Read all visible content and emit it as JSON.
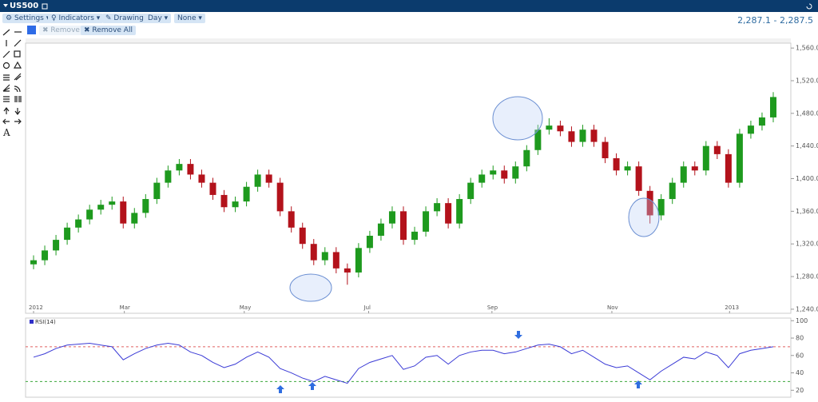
{
  "header": {
    "title": "US500",
    "quote": "2,287.1 - 2,287.5"
  },
  "toolbar": {
    "buttons": [
      "Settings",
      "Indicators",
      "Drawing",
      "Day",
      "None"
    ],
    "remove": "Remove",
    "remove_all": "Remove All"
  },
  "drawing_tools": {
    "text_tool": "A"
  },
  "chart_data": [
    {
      "type": "candlestick",
      "xlim": [
        -0.5,
        66.5
      ],
      "xticks": [
        {
          "value": 0,
          "label": "2012"
        },
        {
          "value": 8.1,
          "label": "Mar"
        },
        {
          "value": 18.8,
          "label": "May"
        },
        {
          "value": 29.9,
          "label": "Jul"
        },
        {
          "value": 40.9,
          "label": "Sep"
        },
        {
          "value": 51.6,
          "label": "Nov"
        },
        {
          "value": 62.1,
          "label": "2013"
        }
      ],
      "ylim": [
        1235,
        1566
      ],
      "yticks": [
        {
          "value": 1240,
          "label": "1,240.0"
        },
        {
          "value": 1280,
          "label": "1,280.0"
        },
        {
          "value": 1320,
          "label": "1,320.0"
        },
        {
          "value": 1360,
          "label": "1,360.0"
        },
        {
          "value": 1400,
          "label": "1,400.0"
        },
        {
          "value": 1440,
          "label": "1,440.0"
        },
        {
          "value": 1480,
          "label": "1,480.0"
        },
        {
          "value": 1520,
          "label": "1,520.0"
        },
        {
          "value": 1560,
          "label": "1,560.0"
        }
      ],
      "grid": false,
      "up_color": "#1e9a1e",
      "down_color": "#b3121b",
      "open": [
        1295,
        1300,
        1312,
        1325,
        1340,
        1350,
        1362,
        1368,
        1372,
        1345,
        1358,
        1375,
        1395,
        1410,
        1418,
        1405,
        1395,
        1380,
        1365,
        1372,
        1390,
        1405,
        1395,
        1360,
        1340,
        1320,
        1300,
        1310,
        1290,
        1285,
        1315,
        1330,
        1345,
        1360,
        1325,
        1335,
        1360,
        1370,
        1345,
        1375,
        1395,
        1405,
        1410,
        1400,
        1415,
        1435,
        1460,
        1465,
        1458,
        1445,
        1460,
        1445,
        1425,
        1410,
        1415,
        1385,
        1355,
        1375,
        1395,
        1415,
        1410,
        1440,
        1430,
        1395,
        1455,
        1465,
        1475
      ],
      "high": [
        1306,
        1318,
        1331,
        1346,
        1356,
        1368,
        1374,
        1378,
        1378,
        1364,
        1381,
        1401,
        1416,
        1424,
        1424,
        1411,
        1401,
        1386,
        1378,
        1396,
        1411,
        1411,
        1401,
        1366,
        1346,
        1326,
        1316,
        1316,
        1296,
        1321,
        1336,
        1351,
        1366,
        1366,
        1341,
        1366,
        1376,
        1376,
        1381,
        1401,
        1411,
        1416,
        1416,
        1421,
        1441,
        1466,
        1474,
        1471,
        1464,
        1466,
        1466,
        1451,
        1431,
        1421,
        1421,
        1391,
        1381,
        1401,
        1421,
        1421,
        1446,
        1446,
        1436,
        1461,
        1471,
        1481,
        1506
      ],
      "low": [
        1289,
        1294,
        1306,
        1319,
        1334,
        1344,
        1356,
        1362,
        1339,
        1339,
        1352,
        1369,
        1389,
        1404,
        1399,
        1389,
        1374,
        1359,
        1359,
        1366,
        1384,
        1389,
        1354,
        1334,
        1314,
        1294,
        1294,
        1284,
        1270,
        1279,
        1309,
        1324,
        1339,
        1319,
        1319,
        1329,
        1354,
        1339,
        1339,
        1369,
        1389,
        1399,
        1394,
        1394,
        1409,
        1429,
        1454,
        1452,
        1439,
        1439,
        1439,
        1419,
        1404,
        1404,
        1379,
        1345,
        1349,
        1369,
        1389,
        1404,
        1404,
        1424,
        1389,
        1389,
        1449,
        1459,
        1469
      ],
      "close": [
        1300,
        1312,
        1325,
        1340,
        1350,
        1362,
        1368,
        1372,
        1345,
        1358,
        1375,
        1395,
        1410,
        1418,
        1405,
        1395,
        1380,
        1365,
        1372,
        1390,
        1405,
        1395,
        1360,
        1340,
        1320,
        1300,
        1310,
        1290,
        1285,
        1315,
        1330,
        1345,
        1360,
        1325,
        1335,
        1360,
        1370,
        1345,
        1375,
        1395,
        1405,
        1410,
        1400,
        1415,
        1435,
        1460,
        1465,
        1458,
        1445,
        1460,
        1445,
        1425,
        1410,
        1415,
        1385,
        1355,
        1375,
        1395,
        1415,
        1410,
        1440,
        1430,
        1395,
        1455,
        1465,
        1475,
        1500
      ]
    },
    {
      "type": "line",
      "title": "RSI(14)",
      "color": "#3b3bd6",
      "xlim": [
        -0.5,
        66.5
      ],
      "ylim": [
        12,
        103
      ],
      "yticks": [
        20,
        40,
        60,
        80,
        100
      ],
      "levels": [
        {
          "value": 70,
          "color": "#e06060"
        },
        {
          "value": 30,
          "color": "#3aa83a"
        }
      ],
      "values": [
        58,
        62,
        68,
        72,
        73,
        74,
        72,
        70,
        55,
        62,
        68,
        72,
        74,
        72,
        64,
        60,
        52,
        46,
        50,
        58,
        64,
        58,
        45,
        40,
        34,
        30,
        36,
        32,
        28,
        45,
        52,
        56,
        60,
        44,
        48,
        58,
        60,
        50,
        60,
        64,
        66,
        66,
        62,
        64,
        68,
        72,
        73,
        70,
        62,
        66,
        58,
        50,
        46,
        48,
        40,
        32,
        42,
        50,
        58,
        56,
        64,
        60,
        46,
        62,
        66,
        68,
        70
      ]
    }
  ]
}
